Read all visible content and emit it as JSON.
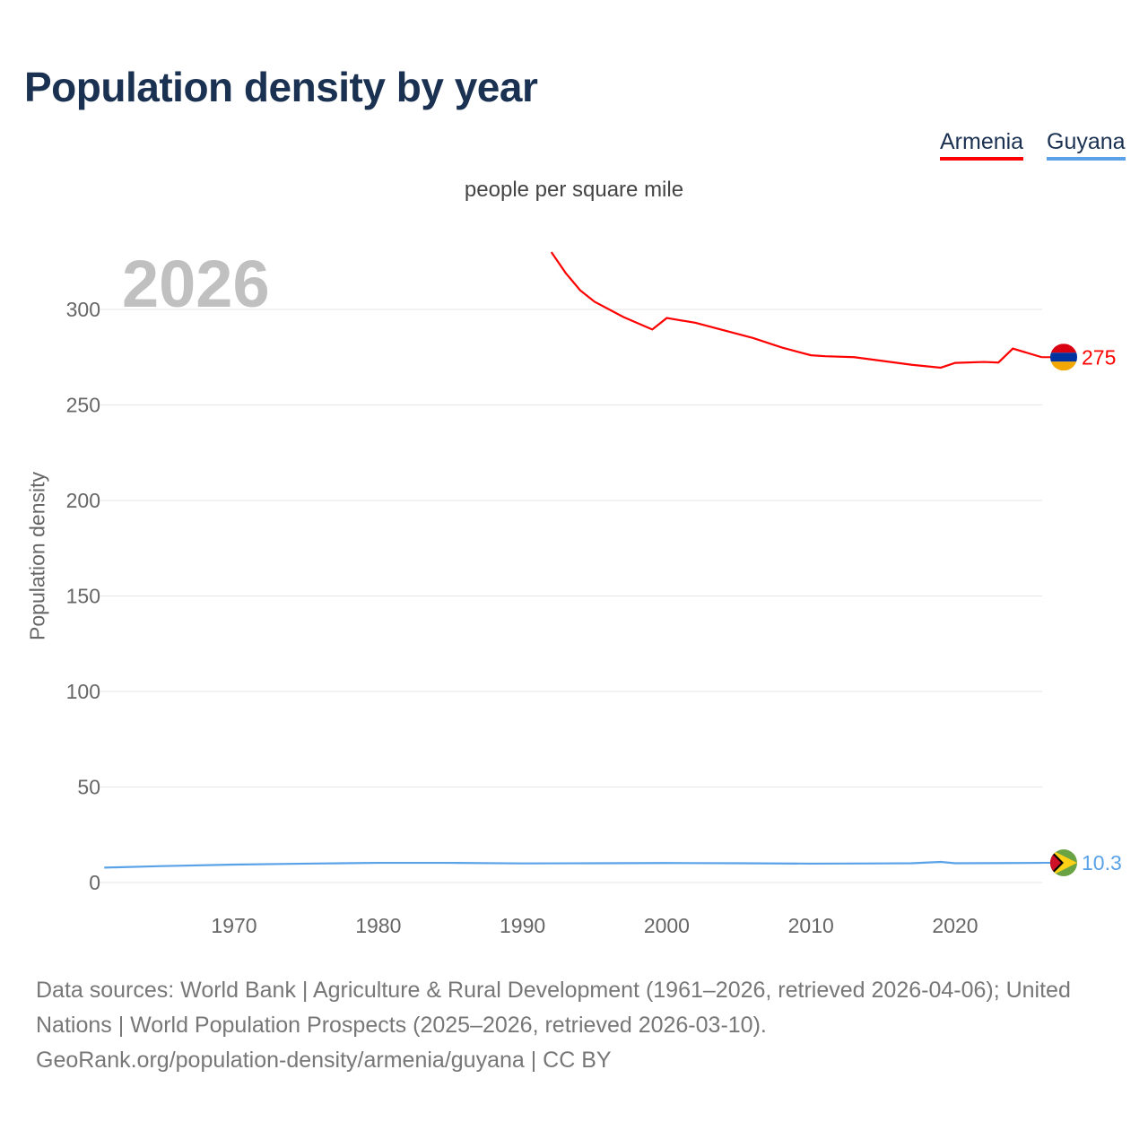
{
  "chart_data": {
    "type": "line",
    "title": "Population density by year",
    "subtitle": "people per square mile",
    "ylabel": "Population density",
    "current_year_label": "2026",
    "xlim": [
      1961,
      2026
    ],
    "ylim": [
      0,
      320
    ],
    "yticks": [
      0,
      50,
      100,
      150,
      200,
      250,
      300
    ],
    "xticks": [
      1970,
      1980,
      1990,
      2000,
      2010,
      2020
    ],
    "grid": true,
    "legend_position": "top-right",
    "series": [
      {
        "name": "Armenia",
        "color": "#ff0000",
        "end_label": "275",
        "points": [
          [
            1992,
            330
          ],
          [
            1993,
            319
          ],
          [
            1994,
            310
          ],
          [
            1995,
            304
          ],
          [
            1997,
            296
          ],
          [
            1999,
            289.5
          ],
          [
            2000,
            295.5
          ],
          [
            2002,
            293
          ],
          [
            2004,
            289
          ],
          [
            2006,
            285
          ],
          [
            2008,
            280
          ],
          [
            2010,
            276
          ],
          [
            2011,
            275.5
          ],
          [
            2013,
            275
          ],
          [
            2015,
            273
          ],
          [
            2017,
            271
          ],
          [
            2019,
            269.5
          ],
          [
            2020,
            272
          ],
          [
            2022,
            272.5
          ],
          [
            2023,
            272.2
          ],
          [
            2024,
            279.5
          ],
          [
            2026,
            275
          ]
        ]
      },
      {
        "name": "Guyana",
        "color": "#5aa2e8",
        "end_label": "10.3",
        "points": [
          [
            1961,
            7.8
          ],
          [
            1965,
            8.6
          ],
          [
            1970,
            9.4
          ],
          [
            1975,
            9.9
          ],
          [
            1980,
            10.3
          ],
          [
            1985,
            10.3
          ],
          [
            1990,
            10.0
          ],
          [
            1995,
            10.1
          ],
          [
            2000,
            10.2
          ],
          [
            2005,
            10.1
          ],
          [
            2010,
            9.9
          ],
          [
            2015,
            10.0
          ],
          [
            2017,
            10.1
          ],
          [
            2019,
            10.8
          ],
          [
            2020,
            10.1
          ],
          [
            2024,
            10.2
          ],
          [
            2026,
            10.3
          ]
        ]
      }
    ]
  },
  "footer": {
    "sources": "Data sources: World Bank | Agriculture & Rural Development (1961–2026, retrieved 2026-04-06); United Nations | World Population Prospects (2025–2026, retrieved 2026-03-10).",
    "link": "GeoRank.org/population-density/armenia/guyana | CC BY"
  }
}
